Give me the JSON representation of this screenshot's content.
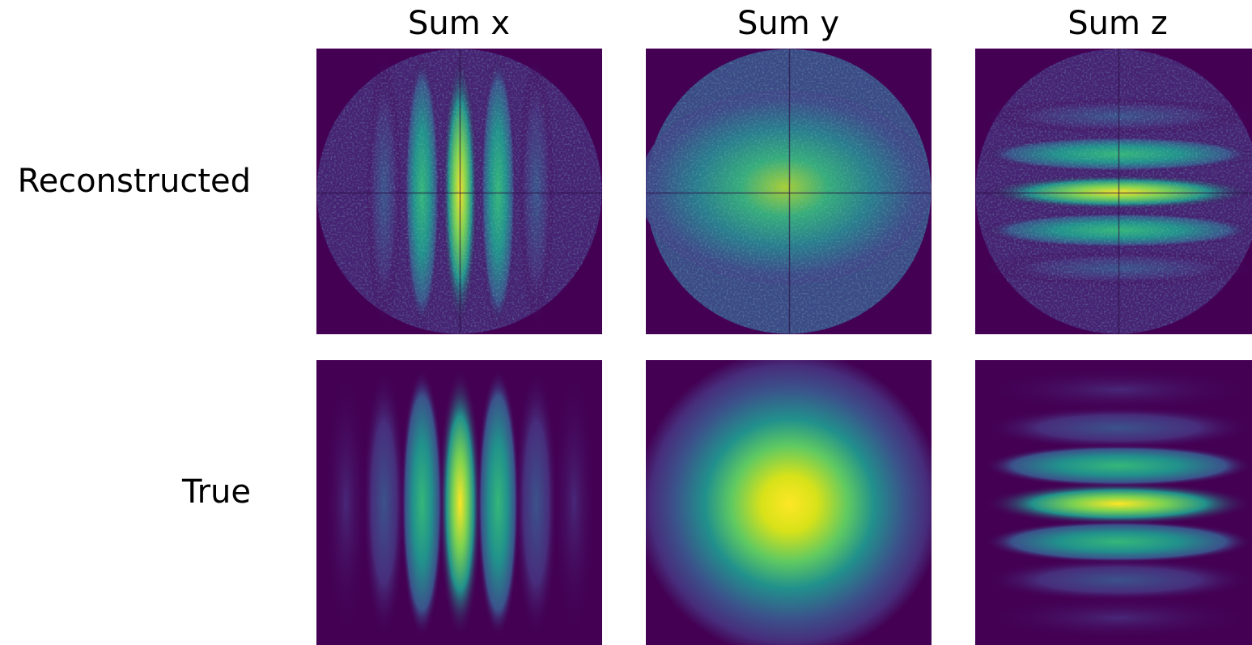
{
  "columns": [
    "Sum x",
    "Sum y",
    "Sum z"
  ],
  "rows": [
    "Reconstructed",
    "True"
  ]
}
